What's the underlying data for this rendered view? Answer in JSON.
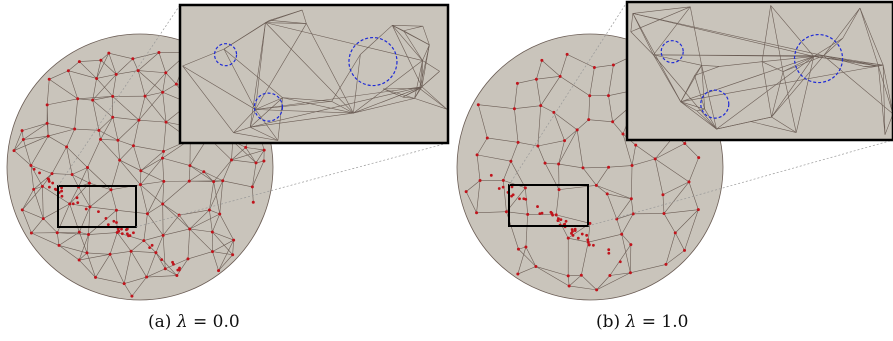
{
  "figure": {
    "panels": [
      {
        "id": "a",
        "caption_label": "(a)",
        "caption_symbol": "λ",
        "caption_value": "= 0.0"
      },
      {
        "id": "b",
        "caption_label": "(b)",
        "caption_symbol": "λ",
        "caption_value": "= 1.0"
      }
    ],
    "colors": {
      "mesh_fill": "#c9c4bb",
      "mesh_edge": "#6b5d55",
      "vertex": "#c0141c",
      "highlight_circle": "#1f2bd6",
      "frame": "#000000",
      "leader_line": "#999999"
    }
  }
}
